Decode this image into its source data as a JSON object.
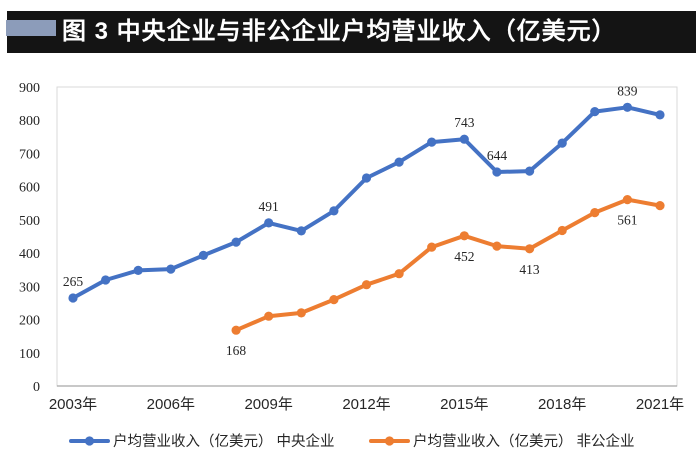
{
  "figure": {
    "title": "图 3  中央企业与非公企业户均营业收入（亿美元）",
    "banner_color": "#141414",
    "accent_color": "#8C9CBA",
    "title_text_color": "#ffffff"
  },
  "chart_data": {
    "type": "line",
    "title": "中央企业与非公企业户均营业收入（亿美元）",
    "x_unit": "年",
    "x_range": [
      2003,
      2021
    ],
    "x_tick_labels": [
      "2003年",
      "2006年",
      "2009年",
      "2012年",
      "2015年",
      "2018年",
      "2021年"
    ],
    "x_tick_years": [
      2003,
      2006,
      2009,
      2012,
      2015,
      2018,
      2021
    ],
    "ylim": [
      0,
      900
    ],
    "y_ticks": [
      0,
      100,
      200,
      300,
      400,
      500,
      600,
      700,
      800,
      900
    ],
    "grid": false,
    "legend_position": "bottom",
    "plot_border_color": "#D9D9D9",
    "axis_line_color": "#A6A6A6",
    "text_color": "#262626",
    "series": [
      {
        "id": "central",
        "name": "户均营业收入（亿美元） 中央企业",
        "color": "#4472C4",
        "start_year": 2003,
        "values": [
          265,
          319,
          348,
          352,
          393,
          433,
          491,
          467,
          527,
          626,
          674,
          734,
          743,
          644,
          647,
          731,
          826,
          839,
          816
        ]
      },
      {
        "id": "nonpublic",
        "name": "户均营业收入（亿美元） 非公企业",
        "color": "#ED7D31",
        "start_year": 2008,
        "values": [
          168,
          210,
          220,
          260,
          305,
          338,
          418,
          452,
          421,
          413,
          468,
          522,
          561,
          543
        ]
      }
    ],
    "data_labels": [
      {
        "series": 0,
        "year": 2003,
        "text": "265",
        "position": "above"
      },
      {
        "series": 0,
        "year": 2009,
        "text": "491",
        "position": "above"
      },
      {
        "series": 0,
        "year": 2015,
        "text": "743",
        "position": "above"
      },
      {
        "series": 0,
        "year": 2016,
        "text": "644",
        "position": "above"
      },
      {
        "series": 0,
        "year": 2020,
        "text": "839",
        "position": "above"
      },
      {
        "series": 1,
        "year": 2008,
        "text": "168",
        "position": "below"
      },
      {
        "series": 1,
        "year": 2015,
        "text": "452",
        "position": "below"
      },
      {
        "series": 1,
        "year": 2017,
        "text": "413",
        "position": "below"
      },
      {
        "series": 1,
        "year": 2020,
        "text": "561",
        "position": "below"
      }
    ]
  }
}
